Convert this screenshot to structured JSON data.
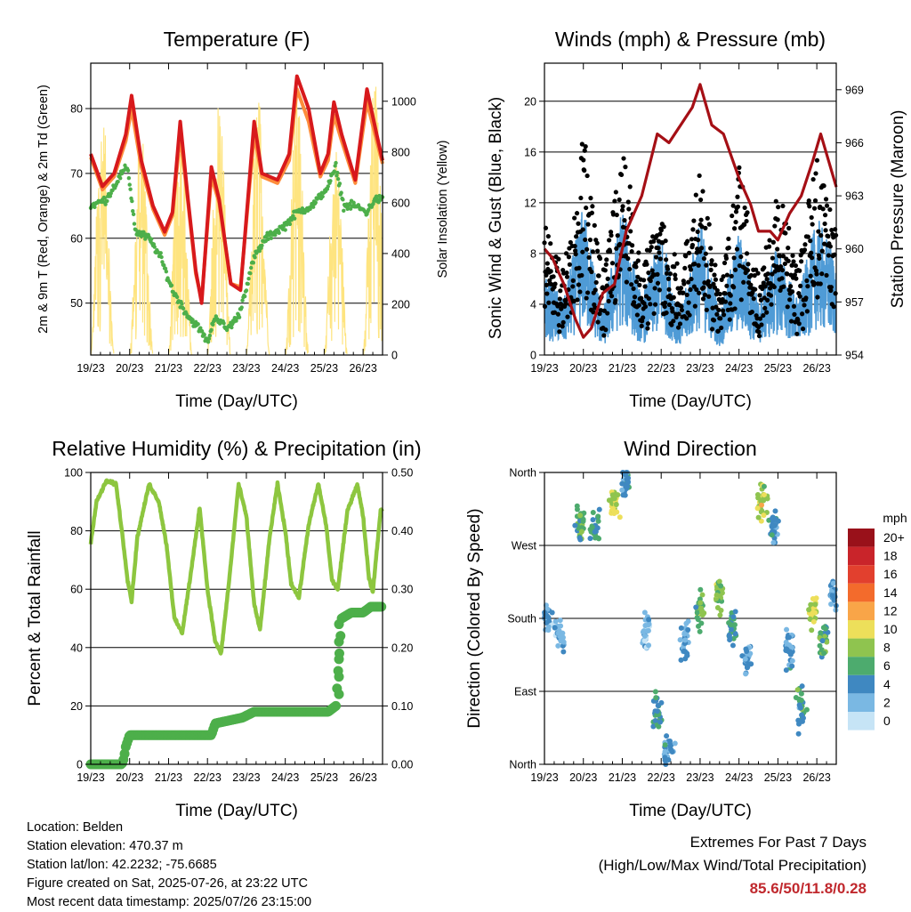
{
  "chart_data": [
    {
      "type": "line",
      "title": "Temperature (F)",
      "xlabel": "Time (Day/UTC)",
      "ylabel": "2m & 9m T (Red, Orange) & 2m Td (Green)",
      "ylabel_right": "Solar Insolation (Yellow)",
      "x_ticks": [
        "19/23",
        "20/23",
        "21/23",
        "22/23",
        "23/23",
        "24/23",
        "25/23",
        "26/23"
      ],
      "ylim": [
        42,
        87
      ],
      "y_ticks": [
        50,
        60,
        70,
        80
      ],
      "ylim_right": [
        0,
        1150
      ],
      "y_ticks_right": [
        0,
        200,
        400,
        600,
        800,
        1000
      ],
      "series": [
        {
          "name": "2m T",
          "color": "#d7191c",
          "points": [
            [
              0,
              73
            ],
            [
              0.3,
              68
            ],
            [
              0.6,
              70
            ],
            [
              0.9,
              76
            ],
            [
              1.05,
              82
            ],
            [
              1.3,
              72
            ],
            [
              1.6,
              65
            ],
            [
              1.9,
              61
            ],
            [
              2.1,
              64
            ],
            [
              2.3,
              78
            ],
            [
              2.5,
              66
            ],
            [
              2.7,
              55
            ],
            [
              2.85,
              50
            ],
            [
              3.1,
              71
            ],
            [
              3.3,
              66
            ],
            [
              3.6,
              53
            ],
            [
              3.85,
              52
            ],
            [
              4.2,
              78
            ],
            [
              4.4,
              70
            ],
            [
              4.8,
              69
            ],
            [
              5.1,
              73
            ],
            [
              5.3,
              85
            ],
            [
              5.6,
              80
            ],
            [
              5.9,
              70
            ],
            [
              6.1,
              73
            ],
            [
              6.25,
              81
            ],
            [
              6.45,
              76
            ],
            [
              6.8,
              69
            ],
            [
              7.1,
              83
            ],
            [
              7.35,
              76
            ],
            [
              7.5,
              72
            ]
          ]
        },
        {
          "name": "9m T",
          "color": "#fd8d3c",
          "points": [
            [
              0,
              72.5
            ],
            [
              0.3,
              67.5
            ],
            [
              0.6,
              69.5
            ],
            [
              0.9,
              75
            ],
            [
              1.05,
              80
            ],
            [
              1.3,
              71
            ],
            [
              1.6,
              64.5
            ],
            [
              1.9,
              60.5
            ],
            [
              2.1,
              63.5
            ],
            [
              2.3,
              76
            ],
            [
              2.5,
              65.5
            ],
            [
              2.7,
              54.5
            ],
            [
              2.85,
              50.5
            ],
            [
              3.1,
              69.5
            ],
            [
              3.3,
              65.5
            ],
            [
              3.6,
              53
            ],
            [
              3.85,
              52.5
            ],
            [
              4.2,
              76
            ],
            [
              4.4,
              69.5
            ],
            [
              4.8,
              68.5
            ],
            [
              5.1,
              72
            ],
            [
              5.3,
              83
            ],
            [
              5.6,
              78
            ],
            [
              5.9,
              69.5
            ],
            [
              6.1,
              72
            ],
            [
              6.25,
              79
            ],
            [
              6.45,
              75
            ],
            [
              6.8,
              68.5
            ],
            [
              7.1,
              81
            ],
            [
              7.35,
              75
            ],
            [
              7.5,
              71.5
            ]
          ]
        },
        {
          "name": "2m Td",
          "color": "#4daf4a",
          "points": [
            [
              0,
              65
            ],
            [
              0.4,
              66
            ],
            [
              0.8,
              70
            ],
            [
              0.95,
              71
            ],
            [
              1.15,
              61
            ],
            [
              1.5,
              60
            ],
            [
              1.8,
              57
            ],
            [
              2.1,
              52
            ],
            [
              2.5,
              48
            ],
            [
              2.8,
              46
            ],
            [
              3.0,
              44
            ],
            [
              3.2,
              48
            ],
            [
              3.5,
              46
            ],
            [
              3.8,
              48
            ],
            [
              4.2,
              57
            ],
            [
              4.5,
              60
            ],
            [
              5.0,
              62
            ],
            [
              5.3,
              64
            ],
            [
              5.7,
              65
            ],
            [
              6.1,
              68
            ],
            [
              6.3,
              71
            ],
            [
              6.5,
              65
            ],
            [
              6.8,
              65
            ],
            [
              7.1,
              64
            ],
            [
              7.3,
              66
            ],
            [
              7.5,
              66
            ]
          ]
        },
        {
          "name": "Solar",
          "color": "#fee480",
          "axis": "right",
          "days": [
            0.3,
            1.3,
            2.3,
            3.3,
            4.3,
            5.3,
            6.3,
            7.3
          ],
          "peaks": [
            980,
            920,
            1000,
            1050,
            1040,
            1060,
            850,
            1100
          ]
        }
      ]
    },
    {
      "type": "scatter",
      "title": "Winds (mph) & Pressure (mb)",
      "xlabel": "Time (Day/UTC)",
      "ylabel": "Sonic Wind & Gust (Blue, Black)",
      "ylabel_right": "Station Pressure (Maroon)",
      "x_ticks": [
        "19/23",
        "20/23",
        "21/23",
        "22/23",
        "23/23",
        "24/23",
        "25/23",
        "26/23"
      ],
      "ylim": [
        0,
        23
      ],
      "y_ticks": [
        0,
        4,
        8,
        12,
        16,
        20
      ],
      "ylim_right": [
        954,
        970.5
      ],
      "y_ticks_right": [
        954,
        957,
        960,
        963,
        966,
        969
      ],
      "wind_envelope": [
        [
          0,
          6
        ],
        [
          0.5,
          4
        ],
        [
          1.0,
          11
        ],
        [
          1.5,
          3
        ],
        [
          2.0,
          11
        ],
        [
          2.5,
          4
        ],
        [
          3.0,
          9
        ],
        [
          3.5,
          3
        ],
        [
          4.0,
          10
        ],
        [
          4.5,
          3
        ],
        [
          5.0,
          9
        ],
        [
          5.5,
          4
        ],
        [
          6.0,
          8
        ],
        [
          6.5,
          4
        ],
        [
          7.0,
          10
        ],
        [
          7.5,
          7
        ]
      ],
      "gust_envelope": [
        [
          0,
          10
        ],
        [
          0.5,
          7
        ],
        [
          1.0,
          17
        ],
        [
          1.5,
          6
        ],
        [
          2.0,
          18
        ],
        [
          2.5,
          7
        ],
        [
          3.0,
          11
        ],
        [
          3.5,
          6
        ],
        [
          4.0,
          15
        ],
        [
          4.5,
          5
        ],
        [
          5.0,
          15
        ],
        [
          5.5,
          6
        ],
        [
          6.0,
          13
        ],
        [
          6.5,
          7
        ],
        [
          7.0,
          16
        ],
        [
          7.5,
          11
        ]
      ],
      "series": [
        {
          "name": "Station Pressure",
          "color": "#a50f15",
          "axis": "right",
          "points": [
            [
              0,
              960
            ],
            [
              0.2,
              959.5
            ],
            [
              0.5,
              958
            ],
            [
              0.8,
              956
            ],
            [
              1.0,
              955
            ],
            [
              1.2,
              955.5
            ],
            [
              1.5,
              957.5
            ],
            [
              1.8,
              958
            ],
            [
              2.1,
              961
            ],
            [
              2.5,
              963
            ],
            [
              2.9,
              966.5
            ],
            [
              3.2,
              966
            ],
            [
              3.5,
              967
            ],
            [
              3.8,
              968
            ],
            [
              4.0,
              969.3
            ],
            [
              4.3,
              967
            ],
            [
              4.6,
              966.5
            ],
            [
              5.0,
              964
            ],
            [
              5.3,
              962.5
            ],
            [
              5.5,
              961
            ],
            [
              5.8,
              961
            ],
            [
              6.0,
              960.5
            ],
            [
              6.3,
              962
            ],
            [
              6.6,
              963
            ],
            [
              6.9,
              965
            ],
            [
              7.1,
              966.5
            ],
            [
              7.3,
              965
            ],
            [
              7.5,
              963.5
            ]
          ]
        }
      ]
    },
    {
      "type": "line",
      "title": "Relative Humidity (%) & Precipitation (in)",
      "xlabel": "Time (Day/UTC)",
      "ylabel": "Percent & Total Rainfall",
      "x_ticks": [
        "19/23",
        "20/23",
        "21/23",
        "22/23",
        "23/23",
        "24/23",
        "25/23",
        "26/23"
      ],
      "ylim": [
        0,
        100
      ],
      "y_ticks": [
        0,
        20,
        40,
        60,
        80,
        100
      ],
      "ylim_right": [
        0,
        0.5
      ],
      "y_ticks_right": [
        0.0,
        0.1,
        0.2,
        0.3,
        0.4,
        0.5
      ],
      "y_tick_labels_right": [
        "0.00",
        "0.10",
        "0.20",
        "0.30",
        "0.40",
        "0.50"
      ],
      "series": [
        {
          "name": "Relative Humidity",
          "color": "#8dc63f",
          "points": [
            [
              0,
              76
            ],
            [
              0.15,
              90
            ],
            [
              0.4,
              97
            ],
            [
              0.65,
              96
            ],
            [
              0.8,
              80
            ],
            [
              0.95,
              63
            ],
            [
              1.05,
              56
            ],
            [
              1.2,
              78
            ],
            [
              1.5,
              96
            ],
            [
              1.75,
              90
            ],
            [
              1.95,
              75
            ],
            [
              2.15,
              50
            ],
            [
              2.35,
              45
            ],
            [
              2.6,
              68
            ],
            [
              2.8,
              88
            ],
            [
              3.0,
              60
            ],
            [
              3.2,
              42
            ],
            [
              3.35,
              38
            ],
            [
              3.55,
              62
            ],
            [
              3.8,
              96
            ],
            [
              4.0,
              85
            ],
            [
              4.2,
              55
            ],
            [
              4.35,
              46
            ],
            [
              4.6,
              78
            ],
            [
              4.8,
              96
            ],
            [
              5.0,
              80
            ],
            [
              5.15,
              62
            ],
            [
              5.35,
              57
            ],
            [
              5.6,
              82
            ],
            [
              5.85,
              96
            ],
            [
              6.05,
              82
            ],
            [
              6.2,
              63
            ],
            [
              6.35,
              60
            ],
            [
              6.6,
              87
            ],
            [
              6.85,
              96
            ],
            [
              7.0,
              85
            ],
            [
              7.15,
              64
            ],
            [
              7.25,
              59
            ],
            [
              7.45,
              87
            ]
          ]
        },
        {
          "name": "Total Rainfall",
          "color": "#4daf4a",
          "axis": "right",
          "points": [
            [
              0,
              0.0
            ],
            [
              0.8,
              0.0
            ],
            [
              0.85,
              0.01
            ],
            [
              0.9,
              0.03
            ],
            [
              1.0,
              0.05
            ],
            [
              3.1,
              0.05
            ],
            [
              3.2,
              0.07
            ],
            [
              3.9,
              0.08
            ],
            [
              4.2,
              0.09
            ],
            [
              6.1,
              0.09
            ],
            [
              6.3,
              0.1
            ],
            [
              6.35,
              0.15
            ],
            [
              6.4,
              0.2
            ],
            [
              6.45,
              0.25
            ],
            [
              6.7,
              0.26
            ],
            [
              7.0,
              0.26
            ],
            [
              7.2,
              0.27
            ],
            [
              7.5,
              0.27
            ]
          ]
        }
      ]
    },
    {
      "type": "scatter",
      "title": "Wind Direction",
      "xlabel": "Time (Day/UTC)",
      "ylabel": "Direction (Colored By Speed)",
      "x_ticks": [
        "19/23",
        "20/23",
        "21/23",
        "22/23",
        "23/23",
        "24/23",
        "25/23",
        "26/23"
      ],
      "ylim": [
        0,
        360
      ],
      "y_ticks": [
        0,
        90,
        180,
        270,
        360
      ],
      "y_tick_labels": [
        "North",
        "East",
        "South",
        "West",
        "North"
      ],
      "legend": {
        "title": "mph",
        "labels": [
          "20+",
          "18",
          "16",
          "14",
          "12",
          "10",
          "8",
          "6",
          "4",
          "2",
          "0"
        ],
        "colors": [
          "#99111a",
          "#c9242a",
          "#e2402e",
          "#f36b2c",
          "#f9a548",
          "#eddf5a",
          "#8fc44f",
          "#4dab6e",
          "#3f88c1",
          "#7ab8e3",
          "#c6e4f6"
        ]
      },
      "clusters": [
        [
          0.05,
          180,
          25,
          3
        ],
        [
          0.4,
          160,
          30,
          2
        ],
        [
          0.9,
          300,
          40,
          6
        ],
        [
          1.3,
          290,
          30,
          5
        ],
        [
          1.8,
          320,
          25,
          9
        ],
        [
          2.1,
          350,
          30,
          4
        ],
        [
          2.6,
          170,
          40,
          2
        ],
        [
          2.9,
          60,
          35,
          5
        ],
        [
          3.2,
          20,
          30,
          3
        ],
        [
          3.6,
          150,
          40,
          3
        ],
        [
          4.0,
          190,
          35,
          7
        ],
        [
          4.5,
          210,
          35,
          8
        ],
        [
          4.8,
          170,
          30,
          5
        ],
        [
          5.2,
          130,
          35,
          3
        ],
        [
          5.6,
          320,
          35,
          9
        ],
        [
          5.9,
          290,
          25,
          4
        ],
        [
          6.3,
          140,
          35,
          3
        ],
        [
          6.6,
          70,
          35,
          5
        ],
        [
          6.9,
          190,
          30,
          9
        ],
        [
          7.2,
          150,
          30,
          6
        ],
        [
          7.45,
          210,
          30,
          3
        ]
      ]
    }
  ],
  "info": {
    "location": "Location: Belden",
    "elevation": "Station elevation: 470.37 m",
    "latlon": "Station lat/lon: 42.2232; -75.6685",
    "created": "Figure created on Sat, 2025-07-26, at 23:22 UTC",
    "recent": "Most recent data timestamp: 2025/07/26 23:15:00"
  },
  "extremes": {
    "title": "Extremes For Past 7 Days",
    "subtitle": "(High/Low/Max Wind/Total Precipitation)",
    "values": "85.6/50/11.8/0.28"
  }
}
